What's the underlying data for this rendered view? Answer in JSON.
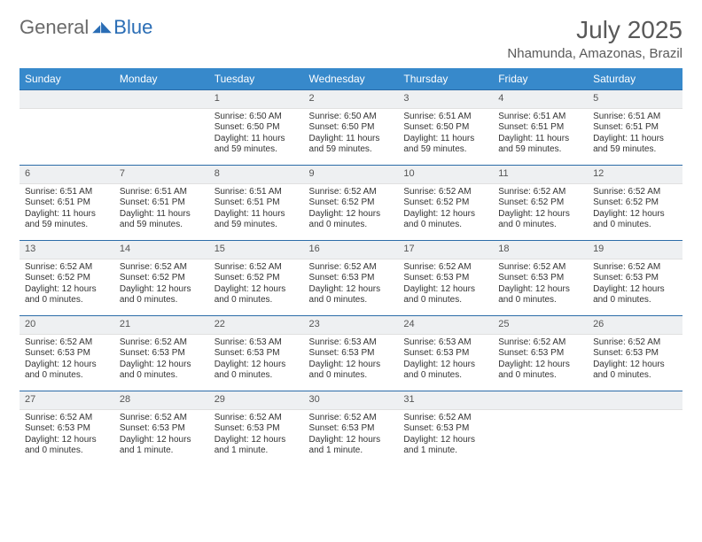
{
  "logo": {
    "word1": "General",
    "word2": "Blue"
  },
  "title": "July 2025",
  "location": "Nhamunda, Amazonas, Brazil",
  "colors": {
    "header_bg": "#3789cb",
    "header_text": "#ffffff",
    "daynum_bg": "#eef0f2",
    "row_border": "#2c6ca8",
    "accent": "#2a6db5",
    "text": "#333333",
    "title_text": "#595959"
  },
  "weekdays": [
    "Sunday",
    "Monday",
    "Tuesday",
    "Wednesday",
    "Thursday",
    "Friday",
    "Saturday"
  ],
  "weeks": [
    [
      null,
      null,
      {
        "n": "1",
        "sr": "Sunrise: 6:50 AM",
        "ss": "Sunset: 6:50 PM",
        "dl": "Daylight: 11 hours and 59 minutes."
      },
      {
        "n": "2",
        "sr": "Sunrise: 6:50 AM",
        "ss": "Sunset: 6:50 PM",
        "dl": "Daylight: 11 hours and 59 minutes."
      },
      {
        "n": "3",
        "sr": "Sunrise: 6:51 AM",
        "ss": "Sunset: 6:50 PM",
        "dl": "Daylight: 11 hours and 59 minutes."
      },
      {
        "n": "4",
        "sr": "Sunrise: 6:51 AM",
        "ss": "Sunset: 6:51 PM",
        "dl": "Daylight: 11 hours and 59 minutes."
      },
      {
        "n": "5",
        "sr": "Sunrise: 6:51 AM",
        "ss": "Sunset: 6:51 PM",
        "dl": "Daylight: 11 hours and 59 minutes."
      }
    ],
    [
      {
        "n": "6",
        "sr": "Sunrise: 6:51 AM",
        "ss": "Sunset: 6:51 PM",
        "dl": "Daylight: 11 hours and 59 minutes."
      },
      {
        "n": "7",
        "sr": "Sunrise: 6:51 AM",
        "ss": "Sunset: 6:51 PM",
        "dl": "Daylight: 11 hours and 59 minutes."
      },
      {
        "n": "8",
        "sr": "Sunrise: 6:51 AM",
        "ss": "Sunset: 6:51 PM",
        "dl": "Daylight: 11 hours and 59 minutes."
      },
      {
        "n": "9",
        "sr": "Sunrise: 6:52 AM",
        "ss": "Sunset: 6:52 PM",
        "dl": "Daylight: 12 hours and 0 minutes."
      },
      {
        "n": "10",
        "sr": "Sunrise: 6:52 AM",
        "ss": "Sunset: 6:52 PM",
        "dl": "Daylight: 12 hours and 0 minutes."
      },
      {
        "n": "11",
        "sr": "Sunrise: 6:52 AM",
        "ss": "Sunset: 6:52 PM",
        "dl": "Daylight: 12 hours and 0 minutes."
      },
      {
        "n": "12",
        "sr": "Sunrise: 6:52 AM",
        "ss": "Sunset: 6:52 PM",
        "dl": "Daylight: 12 hours and 0 minutes."
      }
    ],
    [
      {
        "n": "13",
        "sr": "Sunrise: 6:52 AM",
        "ss": "Sunset: 6:52 PM",
        "dl": "Daylight: 12 hours and 0 minutes."
      },
      {
        "n": "14",
        "sr": "Sunrise: 6:52 AM",
        "ss": "Sunset: 6:52 PM",
        "dl": "Daylight: 12 hours and 0 minutes."
      },
      {
        "n": "15",
        "sr": "Sunrise: 6:52 AM",
        "ss": "Sunset: 6:52 PM",
        "dl": "Daylight: 12 hours and 0 minutes."
      },
      {
        "n": "16",
        "sr": "Sunrise: 6:52 AM",
        "ss": "Sunset: 6:53 PM",
        "dl": "Daylight: 12 hours and 0 minutes."
      },
      {
        "n": "17",
        "sr": "Sunrise: 6:52 AM",
        "ss": "Sunset: 6:53 PM",
        "dl": "Daylight: 12 hours and 0 minutes."
      },
      {
        "n": "18",
        "sr": "Sunrise: 6:52 AM",
        "ss": "Sunset: 6:53 PM",
        "dl": "Daylight: 12 hours and 0 minutes."
      },
      {
        "n": "19",
        "sr": "Sunrise: 6:52 AM",
        "ss": "Sunset: 6:53 PM",
        "dl": "Daylight: 12 hours and 0 minutes."
      }
    ],
    [
      {
        "n": "20",
        "sr": "Sunrise: 6:52 AM",
        "ss": "Sunset: 6:53 PM",
        "dl": "Daylight: 12 hours and 0 minutes."
      },
      {
        "n": "21",
        "sr": "Sunrise: 6:52 AM",
        "ss": "Sunset: 6:53 PM",
        "dl": "Daylight: 12 hours and 0 minutes."
      },
      {
        "n": "22",
        "sr": "Sunrise: 6:53 AM",
        "ss": "Sunset: 6:53 PM",
        "dl": "Daylight: 12 hours and 0 minutes."
      },
      {
        "n": "23",
        "sr": "Sunrise: 6:53 AM",
        "ss": "Sunset: 6:53 PM",
        "dl": "Daylight: 12 hours and 0 minutes."
      },
      {
        "n": "24",
        "sr": "Sunrise: 6:53 AM",
        "ss": "Sunset: 6:53 PM",
        "dl": "Daylight: 12 hours and 0 minutes."
      },
      {
        "n": "25",
        "sr": "Sunrise: 6:52 AM",
        "ss": "Sunset: 6:53 PM",
        "dl": "Daylight: 12 hours and 0 minutes."
      },
      {
        "n": "26",
        "sr": "Sunrise: 6:52 AM",
        "ss": "Sunset: 6:53 PM",
        "dl": "Daylight: 12 hours and 0 minutes."
      }
    ],
    [
      {
        "n": "27",
        "sr": "Sunrise: 6:52 AM",
        "ss": "Sunset: 6:53 PM",
        "dl": "Daylight: 12 hours and 0 minutes."
      },
      {
        "n": "28",
        "sr": "Sunrise: 6:52 AM",
        "ss": "Sunset: 6:53 PM",
        "dl": "Daylight: 12 hours and 1 minute."
      },
      {
        "n": "29",
        "sr": "Sunrise: 6:52 AM",
        "ss": "Sunset: 6:53 PM",
        "dl": "Daylight: 12 hours and 1 minute."
      },
      {
        "n": "30",
        "sr": "Sunrise: 6:52 AM",
        "ss": "Sunset: 6:53 PM",
        "dl": "Daylight: 12 hours and 1 minute."
      },
      {
        "n": "31",
        "sr": "Sunrise: 6:52 AM",
        "ss": "Sunset: 6:53 PM",
        "dl": "Daylight: 12 hours and 1 minute."
      },
      null,
      null
    ]
  ]
}
